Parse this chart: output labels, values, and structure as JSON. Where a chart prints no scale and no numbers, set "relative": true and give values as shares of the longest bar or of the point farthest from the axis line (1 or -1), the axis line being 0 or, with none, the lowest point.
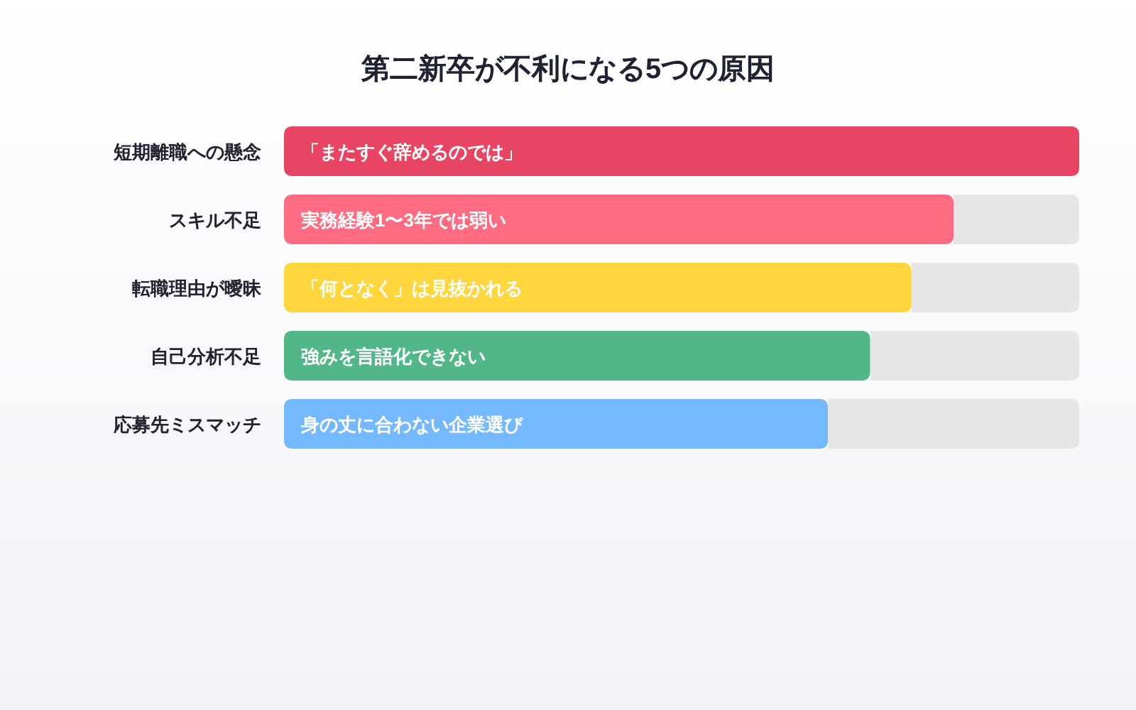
{
  "chart_data": {
    "type": "bar",
    "title": "第二新卒が不利になる5つの原因",
    "orientation": "horizontal",
    "relative": true,
    "stacked": true,
    "categories": [
      "短期離職への懸念",
      "スキル不足",
      "転職理由が曖昧",
      "自己分析不足",
      "応募先ミスマッチ"
    ],
    "series": [
      {
        "colors": [
          "#e84564",
          "#ff6b81",
          "#ffd63e",
          "#52b788",
          "#74b9ff"
        ],
        "values": [
          1,
          0.842,
          0.789,
          0.737,
          0.684
        ]
      },
      {
        "color": "#e6e6e6",
        "values": [
          0,
          0.158,
          0.211,
          0.263,
          0.316
        ]
      }
    ],
    "annotations": [
      {
        "text": "「またすぐ辞めるのでは」",
        "y": "短期離職への懸念"
      },
      {
        "text": "実務経験1〜3年では弱い",
        "y": "スキル不足"
      },
      {
        "text": "「何となく」は見抜かれる",
        "y": "転職理由が曖昧"
      },
      {
        "text": "強みを言語化できない",
        "y": "自己分析不足"
      },
      {
        "text": "身の丈に合わない企業選び",
        "y": "応募先ミスマッチ"
      }
    ]
  }
}
